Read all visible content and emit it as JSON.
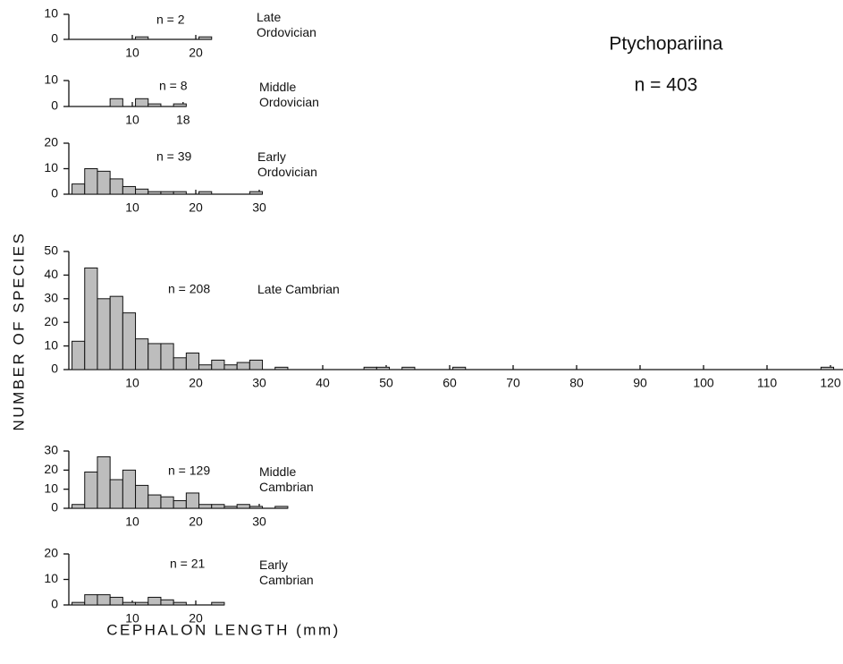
{
  "title": "Ptychopariina",
  "subtitle": "n = 403",
  "ylabel": "NUMBER OF SPECIES",
  "xlabel": "CEPHALON LENGTH (mm)",
  "chart_data": [
    {
      "type": "histogram",
      "title": "Late\nOrdovician",
      "annotation": "n = 2",
      "color": "#bdbdbd",
      "bins": [
        10.5,
        12.5,
        14.5,
        16.5,
        18.5,
        20.5,
        22.5
      ],
      "values": [
        1,
        0,
        0,
        0,
        0,
        1
      ],
      "xlim": [
        0,
        22.5
      ],
      "xticks": [
        10,
        20
      ],
      "ylim": [
        0,
        10
      ],
      "yticks": [
        0,
        10
      ]
    },
    {
      "type": "histogram",
      "title": "Middle\nOrdovician",
      "annotation": "n = 8",
      "color": "#bdbdbd",
      "bins": [
        6.5,
        8.5,
        10.5,
        12.5,
        14.5,
        16.5,
        18.5
      ],
      "values": [
        3,
        0,
        3,
        1,
        0,
        1
      ],
      "xlim": [
        0,
        18.5
      ],
      "xticks": [
        10,
        18
      ],
      "ylim": [
        0,
        10
      ],
      "yticks": [
        0,
        10
      ]
    },
    {
      "type": "histogram",
      "title": "Early\nOrdovician",
      "annotation": "n = 39",
      "color": "#bdbdbd",
      "bins": [
        0.5,
        2.5,
        4.5,
        6.5,
        8.5,
        10.5,
        12.5,
        14.5,
        16.5,
        18.5,
        20.5,
        22.5,
        24.5,
        26.5,
        28.5,
        30.5
      ],
      "values": [
        4,
        10,
        9,
        6,
        3,
        2,
        1,
        1,
        1,
        0,
        1,
        0,
        0,
        0,
        1
      ],
      "xlim": [
        0,
        30.5
      ],
      "xticks": [
        10,
        20,
        30
      ],
      "ylim": [
        0,
        20
      ],
      "yticks": [
        0,
        10,
        20
      ]
    },
    {
      "type": "histogram",
      "title": "Late Cambrian",
      "annotation": "n = 208",
      "color": "#bdbdbd",
      "bins": [
        0.5,
        2.5,
        4.5,
        6.5,
        8.5,
        10.5,
        12.5,
        14.5,
        16.5,
        18.5,
        20.5,
        22.5,
        24.5,
        26.5,
        28.5,
        30.5,
        32.5,
        34.5,
        36.5,
        38.5,
        40.5,
        42.5,
        44.5,
        46.5,
        48.5,
        50.5,
        52.5,
        54.5,
        56.5,
        58.5,
        60.5,
        62.5,
        64.5,
        66.5,
        68.5,
        70.5,
        72.5,
        74.5,
        76.5,
        78.5,
        80.5,
        82.5,
        84.5,
        86.5,
        88.5,
        90.5,
        92.5,
        94.5,
        96.5,
        98.5,
        100.5,
        102.5,
        104.5,
        106.5,
        108.5,
        110.5,
        112.5,
        114.5,
        116.5,
        118.5,
        120.5
      ],
      "values": [
        12,
        43,
        30,
        31,
        24,
        13,
        11,
        11,
        5,
        7,
        2,
        4,
        2,
        3,
        4,
        0,
        1,
        0,
        0,
        0,
        0,
        0,
        0,
        1,
        1,
        0,
        1,
        0,
        0,
        0,
        1,
        0,
        0,
        0,
        0,
        0,
        0,
        0,
        0,
        0,
        0,
        0,
        0,
        0,
        0,
        0,
        0,
        0,
        0,
        0,
        0,
        0,
        0,
        0,
        0,
        0,
        0,
        0,
        0,
        1
      ],
      "xlim": [
        0,
        122
      ],
      "xticks": [
        10,
        20,
        30,
        40,
        50,
        60,
        70,
        80,
        90,
        100,
        110,
        120
      ],
      "ylim": [
        0,
        50
      ],
      "yticks": [
        0,
        10,
        20,
        30,
        40,
        50
      ]
    },
    {
      "type": "histogram",
      "title": "Middle\nCambrian",
      "annotation": "n = 129",
      "color": "#bdbdbd",
      "bins": [
        0.5,
        2.5,
        4.5,
        6.5,
        8.5,
        10.5,
        12.5,
        14.5,
        16.5,
        18.5,
        20.5,
        22.5,
        24.5,
        26.5,
        28.5,
        30.5,
        32.5,
        34.5
      ],
      "values": [
        2,
        19,
        27,
        15,
        20,
        12,
        7,
        6,
        4,
        8,
        2,
        2,
        1,
        2,
        1,
        0,
        1
      ],
      "xlim": [
        0,
        34.5
      ],
      "xticks": [
        10,
        20,
        30
      ],
      "ylim": [
        0,
        30
      ],
      "yticks": [
        0,
        10,
        20,
        30
      ]
    },
    {
      "type": "histogram",
      "title": "Early\nCambrian",
      "annotation": "n = 21",
      "color": "#bdbdbd",
      "bins": [
        0.5,
        2.5,
        4.5,
        6.5,
        8.5,
        10.5,
        12.5,
        14.5,
        16.5,
        18.5,
        20.5,
        22.5,
        24.5
      ],
      "values": [
        1,
        4,
        4,
        3,
        1,
        1,
        3,
        2,
        1,
        0,
        0,
        1
      ],
      "xlim": [
        0,
        24.5
      ],
      "xticks": [
        10,
        20
      ],
      "ylim": [
        0,
        20
      ],
      "yticks": [
        0,
        10,
        20
      ]
    }
  ]
}
